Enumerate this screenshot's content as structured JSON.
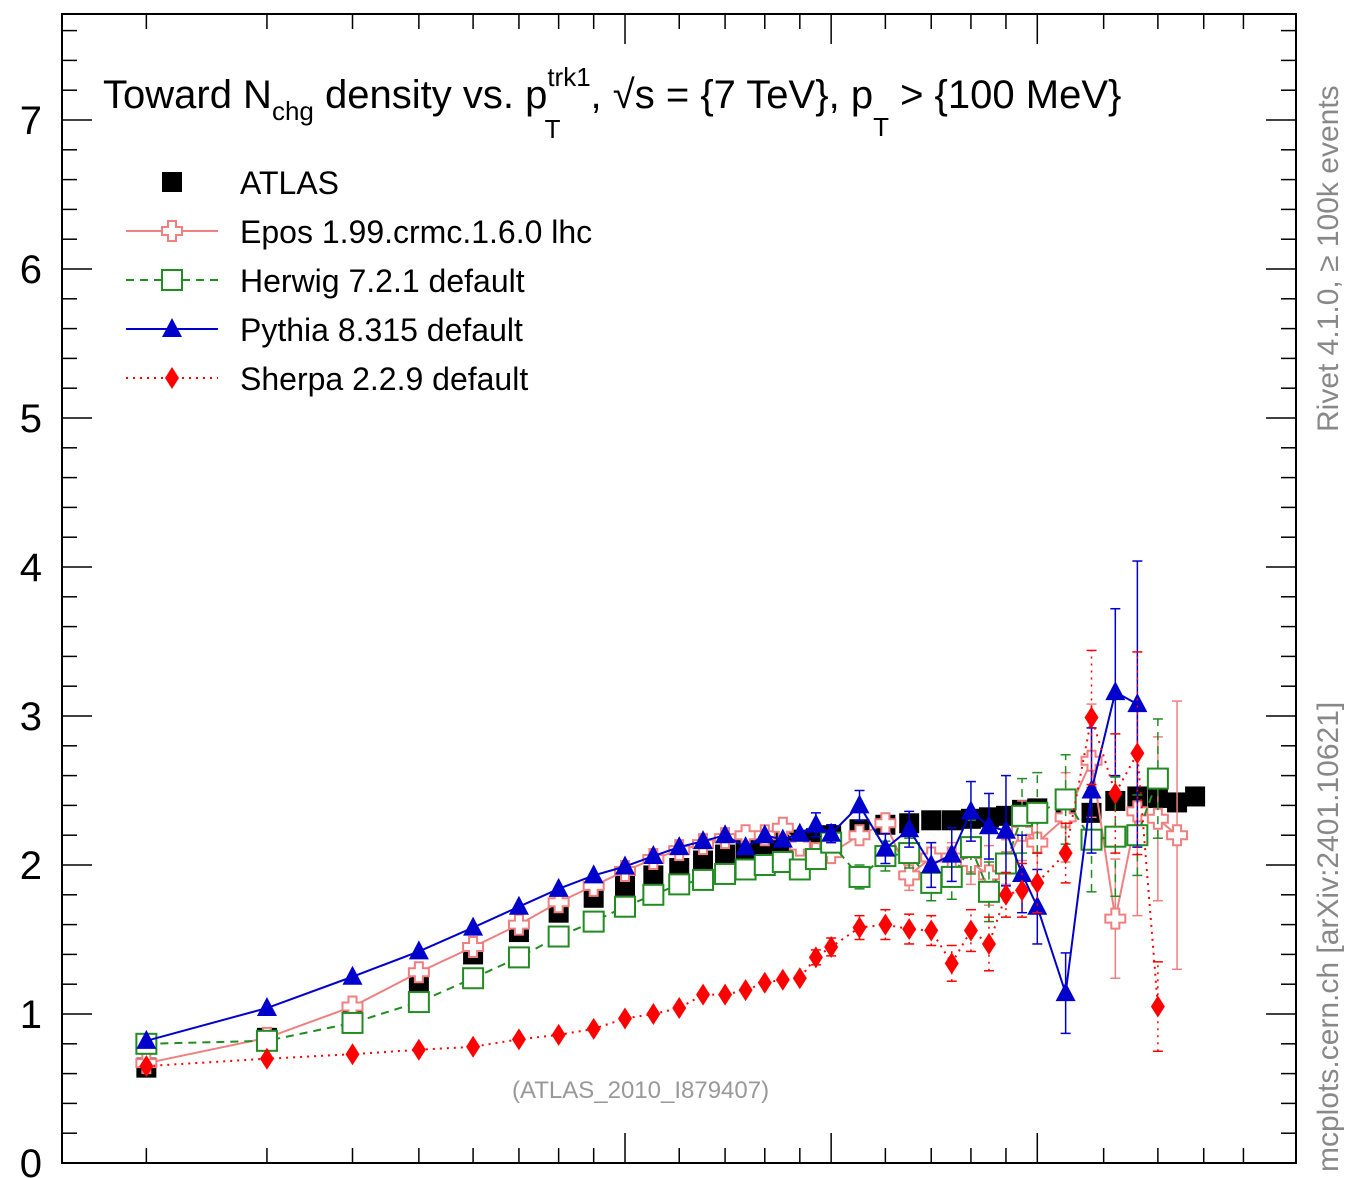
{
  "chart_data": {
    "type": "scatter",
    "title_pieces": {
      "t1": "Toward N",
      "t1sub": "chg",
      "t2": " density vs. p",
      "t2sup": "trk1",
      "t2sub": "T",
      "t3": ", √s = {7 TeV}, p",
      "t3sub": "T",
      "t4": " > {100 MeV}"
    },
    "ylim": [
      0,
      7.8
    ],
    "yticks": [
      {
        "label": "0",
        "value": 0
      },
      {
        "label": "1",
        "value": 1
      },
      {
        "label": "2",
        "value": 2
      },
      {
        "label": "3",
        "value": 3
      },
      {
        "label": "4",
        "value": 4
      },
      {
        "label": "5",
        "value": 5
      },
      {
        "label": "6",
        "value": 6
      },
      {
        "label": "7",
        "value": 7
      }
    ],
    "x": [
      1.0,
      1.5,
      2.0,
      2.5,
      3.0,
      3.5,
      4.0,
      4.5,
      5.0,
      5.5,
      6.0,
      6.5,
      7.0,
      7.5,
      8.0,
      8.5,
      9.0,
      9.5,
      10.0,
      11.0,
      12.0,
      13.0,
      14.0,
      15.0,
      16.0,
      17.0,
      18.0,
      19.0,
      20.0,
      22.0,
      24.0,
      26.0,
      28.0,
      30.0,
      32.0,
      34.0,
      36.0,
      38.0,
      40.0
    ],
    "series": [
      {
        "name": "ATLAS",
        "color": "#000000",
        "marker": "square-filled",
        "line": "none",
        "values": [
          0.64,
          0.84,
          1.0,
          1.2,
          1.4,
          1.55,
          1.68,
          1.78,
          1.86,
          1.93,
          1.98,
          2.03,
          2.07,
          2.11,
          2.14,
          2.16,
          2.17,
          2.18,
          2.2,
          2.24,
          2.27,
          2.28,
          2.3,
          2.3,
          2.31,
          2.32,
          2.33,
          2.37,
          2.38,
          2.38,
          2.35,
          2.43,
          2.46,
          2.45,
          2.42,
          2.46
        ]
      },
      {
        "name": "Epos 1.99.crmc.1.6.0 lhc",
        "color": "#f08080",
        "marker": "cross-open",
        "line": "solid",
        "values": [
          0.67,
          0.84,
          1.05,
          1.28,
          1.45,
          1.6,
          1.75,
          1.86,
          1.96,
          2.04,
          2.1,
          2.14,
          2.18,
          2.2,
          2.2,
          2.25,
          2.13,
          2.08,
          2.08,
          2.2,
          2.28,
          1.93,
          2.05,
          2.05,
          2.02,
          1.93,
          2.02,
          2.23,
          2.15,
          2.32,
          2.7,
          1.64,
          2.36,
          2.31,
          2.2
        ],
        "err": [
          0,
          0,
          0,
          0,
          0,
          0,
          0,
          0,
          0,
          0,
          0,
          0,
          0,
          0,
          0,
          0,
          0,
          0,
          0,
          0,
          0.05,
          0.1,
          0.1,
          0.1,
          0.15,
          0.2,
          0.15,
          0.2,
          0.25,
          0.3,
          0.38,
          0.4,
          0.7,
          0.55,
          0.9
        ]
      },
      {
        "name": "Herwig 7.2.1 default",
        "color": "#228b22",
        "marker": "square-open",
        "line": "dashed",
        "values": [
          0.8,
          0.82,
          0.94,
          1.08,
          1.24,
          1.38,
          1.52,
          1.62,
          1.72,
          1.8,
          1.87,
          1.9,
          1.94,
          1.97,
          2.0,
          2.02,
          1.97,
          2.04,
          2.15,
          1.92,
          2.06,
          2.08,
          1.88,
          1.92,
          2.12,
          1.82,
          2.01,
          2.33,
          2.35,
          2.44,
          2.17,
          2.19,
          2.2,
          2.58
        ],
        "err": [
          0,
          0,
          0,
          0,
          0,
          0,
          0,
          0,
          0,
          0,
          0,
          0,
          0,
          0,
          0,
          0,
          0,
          0,
          0,
          0.08,
          0.1,
          0.1,
          0.12,
          0.15,
          0.18,
          0.2,
          0.2,
          0.25,
          0.27,
          0.3,
          0.35,
          0.4,
          0.27,
          0.4
        ]
      },
      {
        "name": "Pythia 8.315 default",
        "color": "#0000cc",
        "marker": "triangle-filled",
        "line": "solid",
        "values": [
          0.82,
          1.04,
          1.25,
          1.42,
          1.58,
          1.72,
          1.84,
          1.93,
          1.99,
          2.06,
          2.12,
          2.16,
          2.2,
          2.12,
          2.2,
          2.17,
          2.21,
          2.27,
          2.21,
          2.4,
          2.11,
          2.24,
          2.0,
          2.07,
          2.36,
          2.26,
          2.23,
          1.94,
          1.72,
          1.14,
          2.5,
          3.16,
          3.08
        ],
        "err": [
          0,
          0,
          0,
          0,
          0,
          0,
          0,
          0,
          0,
          0,
          0,
          0,
          0,
          0,
          0,
          0,
          0,
          0.08,
          0.06,
          0.1,
          0.1,
          0.12,
          0.15,
          0.18,
          0.2,
          0.22,
          0.37,
          0.26,
          0.25,
          0.27,
          0.42,
          0.56,
          0.96
        ]
      },
      {
        "name": "Sherpa 2.2.9 default",
        "color": "#ff0000",
        "marker": "diamond-filled",
        "line": "dotted",
        "values": [
          0.65,
          0.7,
          0.73,
          0.76,
          0.78,
          0.83,
          0.86,
          0.9,
          0.97,
          1.0,
          1.04,
          1.13,
          1.13,
          1.16,
          1.21,
          1.23,
          1.24,
          1.38,
          1.45,
          1.58,
          1.6,
          1.57,
          1.56,
          1.34,
          1.56,
          1.47,
          1.8,
          1.83,
          1.88,
          2.08,
          2.99,
          2.48,
          2.75,
          1.05
        ],
        "err": [
          0,
          0,
          0,
          0,
          0,
          0,
          0,
          0,
          0,
          0,
          0,
          0,
          0,
          0,
          0,
          0,
          0,
          0.05,
          0.06,
          0.08,
          0.1,
          0.1,
          0.1,
          0.12,
          0.14,
          0.18,
          0.15,
          0.18,
          0.2,
          0.2,
          0.45,
          0.4,
          0.68,
          0.3
        ]
      }
    ]
  },
  "side": {
    "rivet": "Rivet 4.1.0, ≥ 100k events",
    "mcplots": "mcplots.cern.ch [arXiv:2401.10621]"
  },
  "analysis_tag": "(ATLAS_2010_I879407)"
}
